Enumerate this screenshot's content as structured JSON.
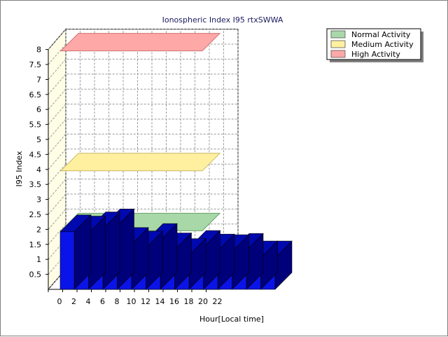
{
  "chart_data": {
    "type": "bar",
    "title": "Ionospheric Index I95 rtxSWWA",
    "xlabel": "Hour[Local time]",
    "ylabel": "I95 Index",
    "x_ticks": [
      "0",
      "2",
      "4",
      "6",
      "8",
      "10",
      "12",
      "14",
      "16",
      "18",
      "20",
      "22"
    ],
    "xlim": [
      0,
      24
    ],
    "y_ticks": [
      "0.5",
      "1",
      "1.5",
      "2",
      "2.5",
      "3",
      "3.5",
      "4",
      "4.5",
      "5",
      "5.5",
      "6",
      "6.5",
      "7",
      "7.5",
      "8"
    ],
    "ylim": [
      0,
      8
    ],
    "grid": true,
    "legend_position": "top-right",
    "x": [
      0,
      1,
      2,
      3,
      4,
      5,
      6,
      7,
      8,
      9,
      10,
      11,
      12,
      13,
      14
    ],
    "values": [
      1.92,
      1.88,
      2.02,
      2.12,
      1.5,
      1.38,
      1.63,
      1.32,
      1.13,
      1.4,
      1.28,
      1.26,
      1.3,
      1.05,
      1.05
    ],
    "bands": [
      {
        "name": "Normal Activity",
        "y": 2.0,
        "color": "#a8d8a8"
      },
      {
        "name": "Medium Activity",
        "y": 4.0,
        "color": "#fff0a0"
      },
      {
        "name": "High Activity",
        "y": 8.0,
        "color": "#ffa8a8"
      }
    ],
    "colors": {
      "bar_front": "#0a14e8",
      "bar_side": "#00007a",
      "bar_top": "#0008b0",
      "wall": "#fffde6",
      "title": "#1a1a5e"
    }
  }
}
